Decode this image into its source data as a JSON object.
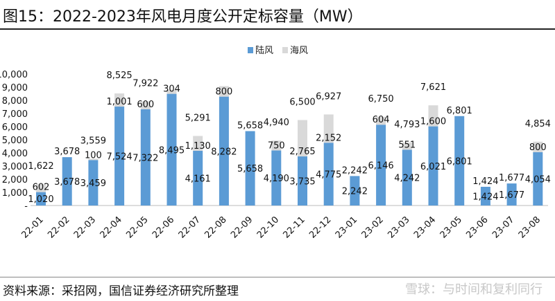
{
  "title": "图15：2022-2023年风电月度公开定标容量（MW）",
  "source": "资料来源：采招网，国信证券经济研究所整理",
  "watermark": "雪球：与时间和复利同行",
  "chart_data": {
    "type": "bar",
    "stacked": true,
    "categories": [
      "22-01",
      "22-02",
      "22-03",
      "22-04",
      "22-05",
      "22-06",
      "22-07",
      "22-08",
      "22-09",
      "22-10",
      "22-11",
      "22-12",
      "23-01",
      "23-02",
      "23-03",
      "23-04",
      "23-05",
      "23-06",
      "23-07",
      "23-08"
    ],
    "series": [
      {
        "name": "陆风",
        "color": "#5b9bd5",
        "values": [
          1020,
          3678,
          3459,
          7524,
          7322,
          8495,
          4161,
          8282,
          5658,
          4190,
          3735,
          4775,
          2242,
          6146,
          4242,
          6021,
          6801,
          1424,
          1677,
          4054
        ]
      },
      {
        "name": "海风",
        "color": "#d9d9d9",
        "values": [
          602,
          0,
          100,
          1001,
          600,
          304,
          1130,
          800,
          0,
          750,
          2765,
          2152,
          0,
          604,
          551,
          1600,
          0,
          0,
          0,
          800
        ]
      }
    ],
    "totals": [
      1622,
      3678,
      3559,
      8525,
      7922,
      null,
      5291,
      null,
      5658,
      4940,
      6500,
      6927,
      2242,
      6750,
      4793,
      7621,
      6801,
      1424,
      1677,
      4854
    ],
    "yticks": [
      "-",
      "1,000",
      "2,000",
      "3,000",
      "4,000",
      "5,000",
      "6,000",
      "7,000",
      "8,000",
      "9,000",
      "10,000"
    ],
    "ylim": [
      0,
      10000
    ],
    "legend": "top-center",
    "grid": false
  }
}
